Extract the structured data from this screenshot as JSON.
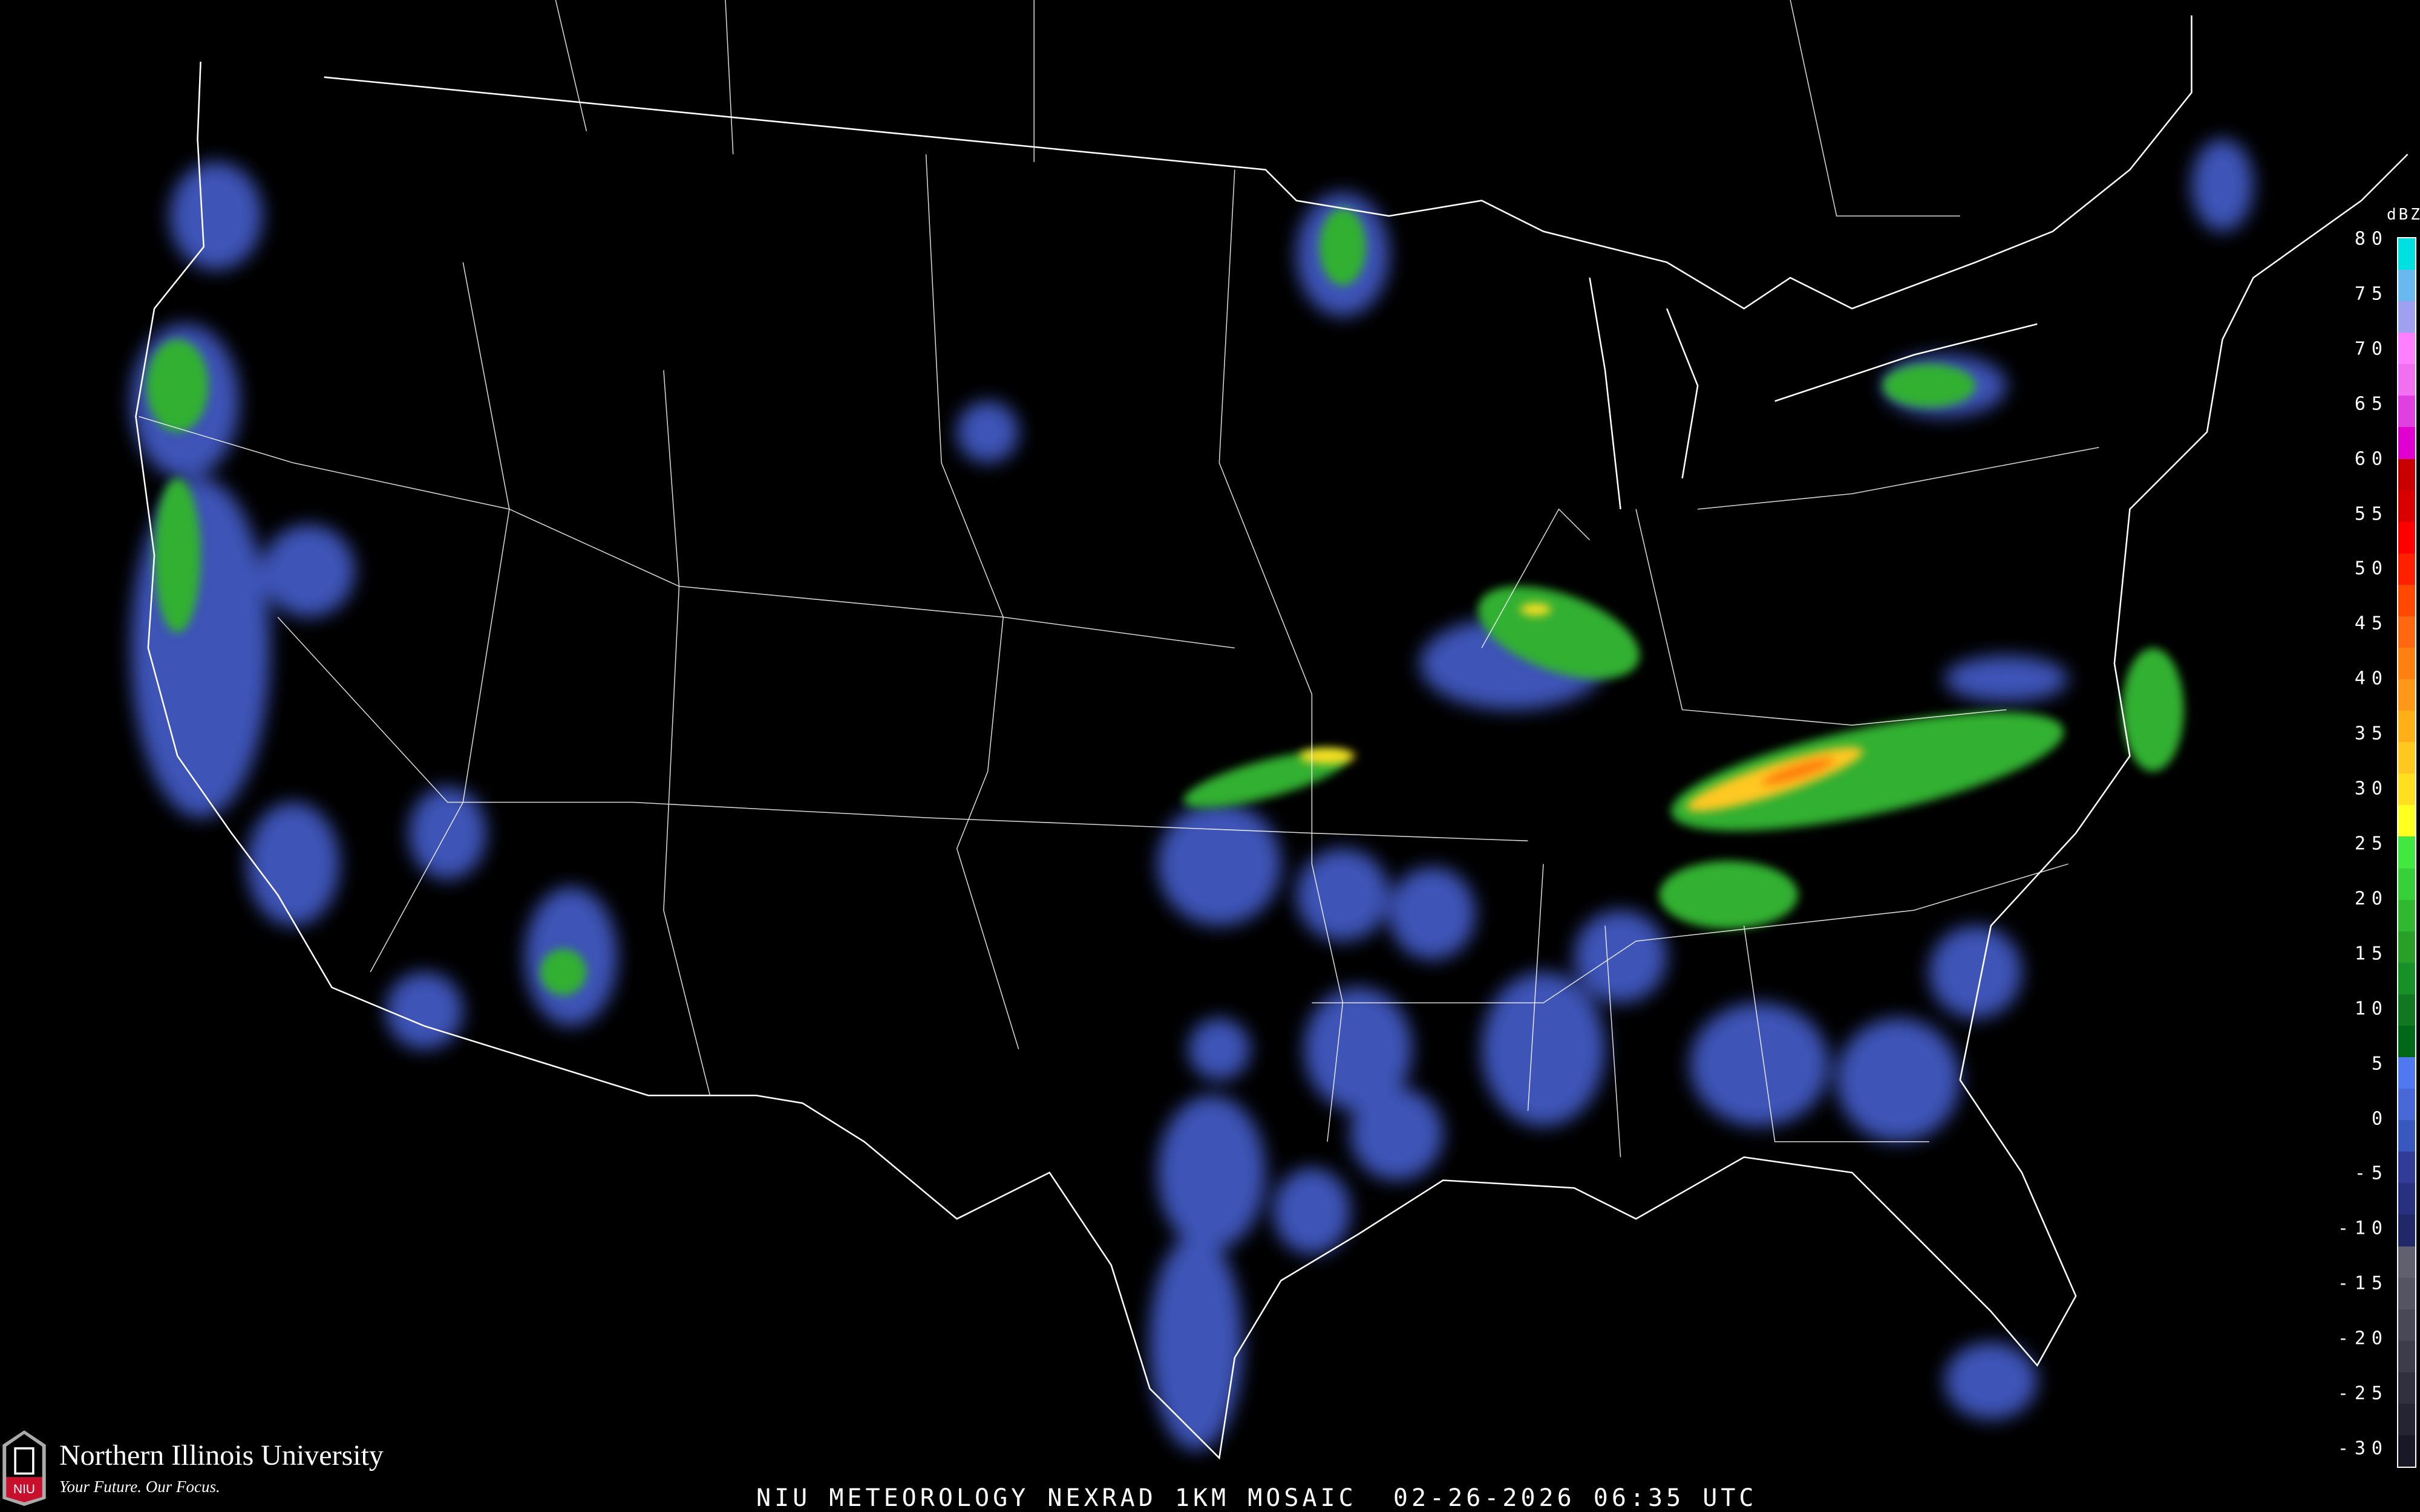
{
  "title": "NIU METEOROLOGY NEXRAD 1KM MOSAIC  02-26-2026 06:35 UTC",
  "logo": {
    "name": "Northern Illinois University",
    "tagline": "Your Future. Our Focus.",
    "mark": "NIU"
  },
  "legend": {
    "unit": "dBZ",
    "labels": [
      "80",
      "75",
      "70",
      "65",
      "60",
      "55",
      "50",
      "45",
      "40",
      "35",
      "30",
      "25",
      "20",
      "15",
      "10",
      "5",
      "0",
      "-5",
      "-10",
      "-15",
      "-20",
      "-25",
      "-30"
    ],
    "colors": [
      "#00e0e0",
      "#6ab8f0",
      "#a0a0f0",
      "#ff80ff",
      "#f070f0",
      "#e040e0",
      "#e000d0",
      "#c80000",
      "#d80000",
      "#ff0000",
      "#ff2000",
      "#ff4800",
      "#ff6810",
      "#ff8010",
      "#ff9818",
      "#ffb018",
      "#ffc820",
      "#ffe020",
      "#ffff20",
      "#40e840",
      "#38d038",
      "#30b830",
      "#28a028",
      "#189028",
      "#107820",
      "#006818",
      "#5078f0",
      "#4868d8",
      "#3858c0",
      "#303c98",
      "#283080",
      "#202868",
      "#606070",
      "#545464",
      "#484858",
      "#3c3c4c",
      "#303040",
      "#242434",
      "#181828"
    ]
  },
  "colors": {
    "background": "#000000",
    "borders": "#ffffff",
    "counties": "#555555",
    "highways": "#8b4513"
  }
}
